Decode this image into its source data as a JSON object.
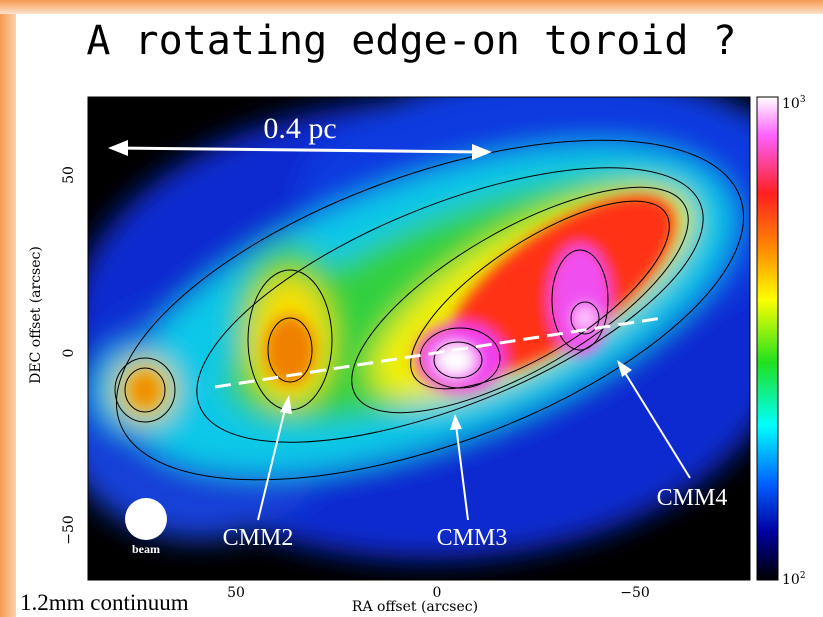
{
  "title": "A rotating edge-on toroid ?",
  "image": {
    "scale_label": "0.4 pc",
    "sources": [
      "CMM2",
      "CMM3",
      "CMM4"
    ],
    "beam_label": "beam"
  },
  "axes": {
    "y_label": "DEC offset (arcsec)",
    "y_ticks": [
      "50",
      "0",
      "−50"
    ],
    "x_label": "RA offset (arcsec)",
    "x_ticks": [
      "50",
      "0",
      "−50"
    ]
  },
  "colorbar": {
    "top": {
      "base": "10",
      "exponent": "3"
    },
    "bottom": {
      "base": "10",
      "exponent": "2"
    }
  },
  "caption": "1.2mm continuum"
}
